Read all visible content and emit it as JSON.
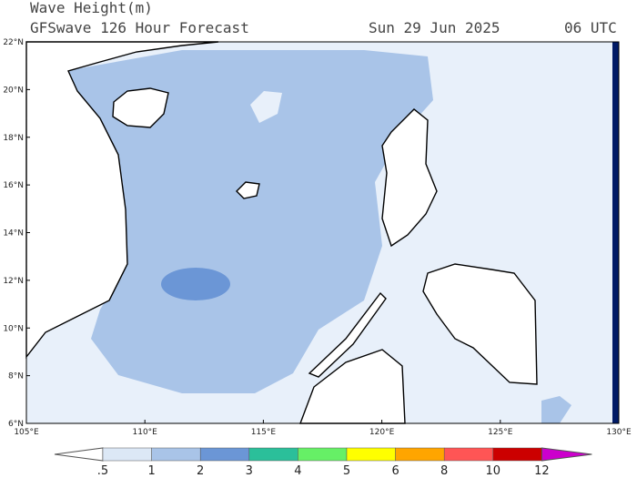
{
  "header": {
    "title": "Wave Height(m)",
    "subtitle": "GFSwave 126 Hour Forecast",
    "date": "Sun 29 Jun 2025",
    "time": "06 UTC"
  },
  "map": {
    "latitude_labels": [
      "22°N",
      "20°N",
      "18°N",
      "16°N",
      "14°N",
      "12°N",
      "10°N",
      "8°N",
      "6°N"
    ],
    "longitude_labels": [
      "105°E",
      "110°E",
      "115°E",
      "120°E",
      "125°E",
      "130°E"
    ]
  },
  "colorbar": {
    "labels": [
      ".5",
      "1",
      "2",
      "3",
      "4",
      "5",
      "6",
      "8",
      "10",
      "12"
    ],
    "colors": [
      "#ffffff",
      "#dce8f6",
      "#a9c4e8",
      "#6b96d6",
      "#2bbf9a",
      "#66f066",
      "#ffff00",
      "#ffa500",
      "#ff5555",
      "#cc0000",
      "#cc00cc"
    ]
  }
}
